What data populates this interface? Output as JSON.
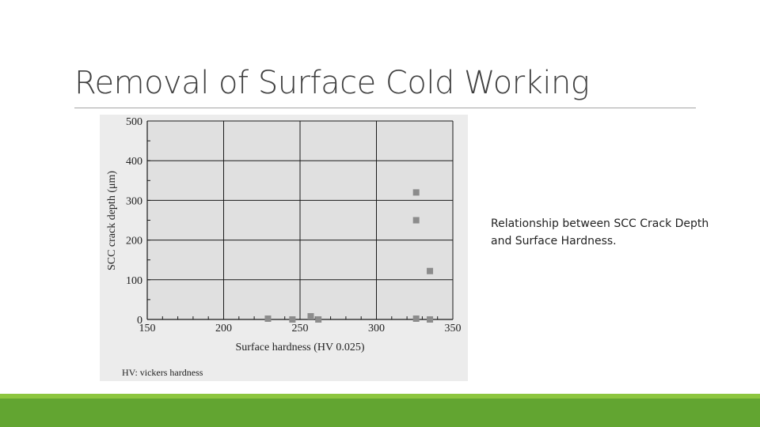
{
  "slide": {
    "title": "Removal of Surface Cold Working",
    "caption": "Relationship between SCC Crack Depth and Surface Hardness."
  },
  "figure": {
    "footnote": "HV: vickers hardness"
  },
  "chart_data": {
    "type": "scatter",
    "xlabel": "Surface hardness (HV 0.025)",
    "ylabel": "SCC crack depth (μm)",
    "xlim": [
      150,
      350
    ],
    "ylim": [
      0,
      500
    ],
    "xticks": [
      150,
      200,
      250,
      300,
      350
    ],
    "yticks": [
      0,
      100,
      200,
      300,
      400,
      500
    ],
    "xtick_labels": [
      "150",
      "200",
      "250",
      "300",
      "350"
    ],
    "ytick_labels": [
      "0",
      "100",
      "200",
      "300",
      "400",
      "500"
    ],
    "grid": true,
    "series": [
      {
        "marker": "square",
        "color": "#8c8c8c",
        "x": [
          229,
          245,
          257,
          262,
          326,
          326,
          326,
          335,
          335
        ],
        "y": [
          2,
          0,
          8,
          0,
          320,
          250,
          2,
          122,
          0
        ]
      }
    ]
  }
}
